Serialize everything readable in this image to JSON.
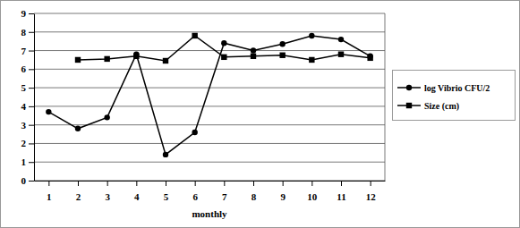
{
  "chart_data": {
    "type": "line",
    "x_label": "monthly",
    "categories": [
      "1",
      "2",
      "3",
      "4",
      "5",
      "6",
      "7",
      "8",
      "9",
      "10",
      "11",
      "12"
    ],
    "series": [
      {
        "name": "log Vibrio CFU/2",
        "color": "#000000",
        "marker": "circle",
        "line_style": "solid",
        "values": [
          3.7,
          2.8,
          3.4,
          6.8,
          1.4,
          2.6,
          7.4,
          7.0,
          7.35,
          7.8,
          7.6,
          6.7
        ]
      },
      {
        "name": "Size (cm)",
        "color": "#000000",
        "marker": "square",
        "line_style": "solid",
        "values": [
          null,
          6.5,
          6.55,
          6.7,
          6.45,
          7.8,
          6.65,
          6.7,
          6.75,
          6.5,
          6.8,
          6.6
        ]
      }
    ],
    "ylim": [
      0,
      9
    ],
    "yticks": [
      0,
      1,
      2,
      3,
      4,
      5,
      6,
      7,
      8,
      9
    ],
    "grid": true,
    "legend": "right"
  }
}
